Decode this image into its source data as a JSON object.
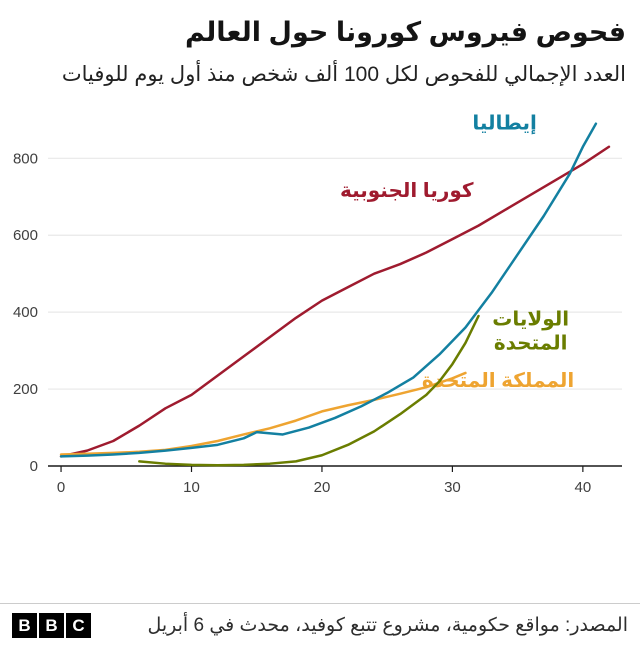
{
  "header": {
    "title": "فحوص فيروس كورونا حول العالم",
    "subtitle": "العدد الإجمالي للفحوص لكل 100 ألف شخص منذ أول يوم للوفيات"
  },
  "chart_data": {
    "type": "line",
    "title": "فحوص فيروس كورونا حول العالم",
    "subtitle": "العدد الإجمالي للفحوص لكل 100 ألف شخص منذ أول يوم للوفيات",
    "xlabel": "",
    "ylabel": "",
    "xlim": [
      -1,
      43
    ],
    "ylim": [
      0,
      910
    ],
    "xticks": [
      0,
      10,
      20,
      30,
      40
    ],
    "yticks": [
      0,
      200,
      400,
      600,
      800
    ],
    "grid": "horizontal",
    "grid_color": "#e8e8e8",
    "axis_color": "#1a1a1a",
    "tick_label_color": "#404040",
    "legend_position": "inline-labels",
    "series": [
      {
        "name": "كوريا الجنوبية",
        "color": "#9f1b2f",
        "label": {
          "x": 26.5,
          "y": 700,
          "lines": [
            "كوريا الجنوبية"
          ]
        },
        "x": [
          0,
          2,
          4,
          6,
          8,
          10,
          12,
          14,
          16,
          18,
          20,
          22,
          24,
          26,
          28,
          30,
          32,
          34,
          36,
          38,
          40,
          42
        ],
        "y": [
          25,
          40,
          65,
          105,
          150,
          185,
          235,
          285,
          335,
          385,
          430,
          465,
          500,
          525,
          555,
          590,
          625,
          665,
          705,
          745,
          785,
          830
        ]
      },
      {
        "name": "المملكة المتحدة",
        "color": "#eea431",
        "label": {
          "x": 33.5,
          "y": 205,
          "lines": [
            "المملكة المتحدة"
          ]
        },
        "x": [
          0,
          2,
          4,
          6,
          8,
          10,
          12,
          14,
          16,
          18,
          20,
          22,
          24,
          26,
          28,
          30,
          31
        ],
        "y": [
          30,
          32,
          34,
          37,
          42,
          52,
          65,
          82,
          98,
          118,
          142,
          158,
          172,
          188,
          205,
          228,
          242
        ]
      },
      {
        "name": "الولايات المتحدة",
        "color": "#6a7d00",
        "label": {
          "x": 36,
          "y": 365,
          "lines": [
            "الولايات",
            "المتحدة"
          ]
        },
        "x": [
          6,
          8,
          10,
          12,
          14,
          16,
          18,
          20,
          22,
          24,
          26,
          28,
          29,
          30,
          31,
          32
        ],
        "y": [
          12,
          6,
          3,
          2,
          3,
          6,
          12,
          28,
          55,
          90,
          135,
          185,
          220,
          265,
          320,
          390
        ]
      },
      {
        "name": "إيطاليا",
        "color": "#1380a1",
        "label": {
          "x": 34,
          "y": 875,
          "lines": [
            "إيطاليا"
          ]
        },
        "x": [
          0,
          2,
          4,
          6,
          8,
          10,
          12,
          14,
          15,
          17,
          19,
          21,
          23,
          25,
          27,
          29,
          31,
          33,
          35,
          37,
          39,
          40,
          41
        ],
        "y": [
          25,
          27,
          30,
          34,
          40,
          47,
          55,
          72,
          88,
          82,
          100,
          125,
          155,
          190,
          230,
          290,
          360,
          450,
          550,
          650,
          760,
          830,
          890
        ]
      }
    ]
  },
  "footer": {
    "logo_blocks": [
      "B",
      "B",
      "C"
    ],
    "source": "المصدر: مواقع حكومية، مشروع تتبع كوفيد، محدث في 6 أبريل"
  }
}
